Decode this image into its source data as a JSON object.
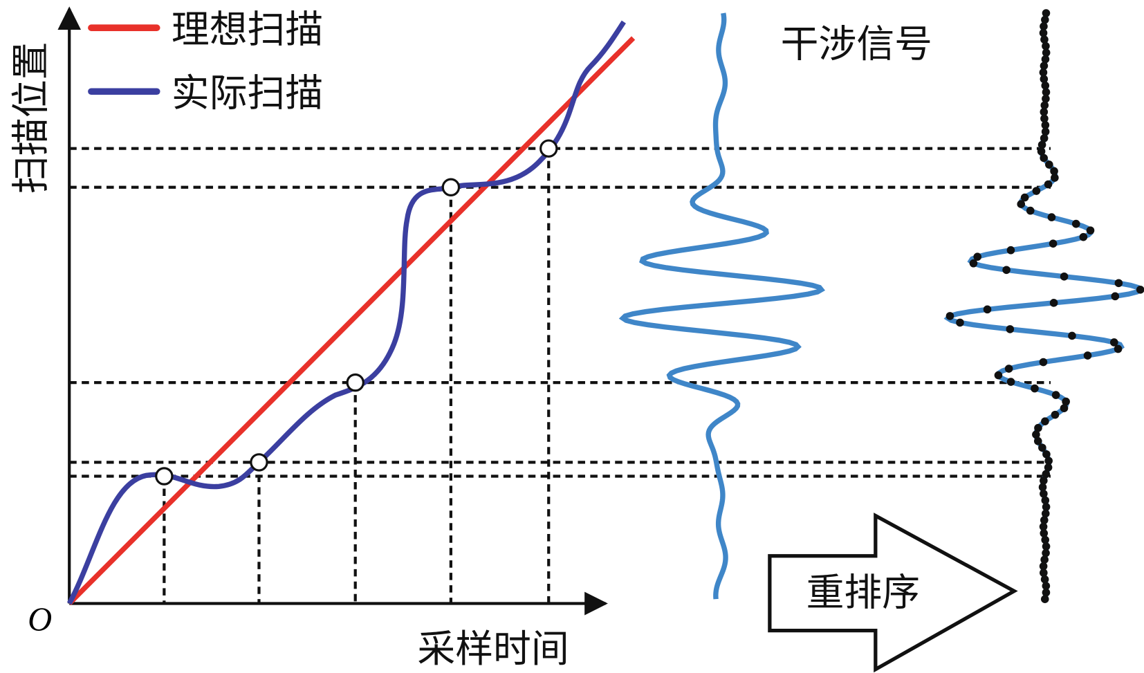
{
  "legend": {
    "ideal": "理想扫描",
    "actual": "实际扫描"
  },
  "axes": {
    "y_label": "扫描位置",
    "x_label": "采样时间",
    "origin": "O"
  },
  "signal_label": "干涉信号",
  "arrow_label": "重排序"
}
